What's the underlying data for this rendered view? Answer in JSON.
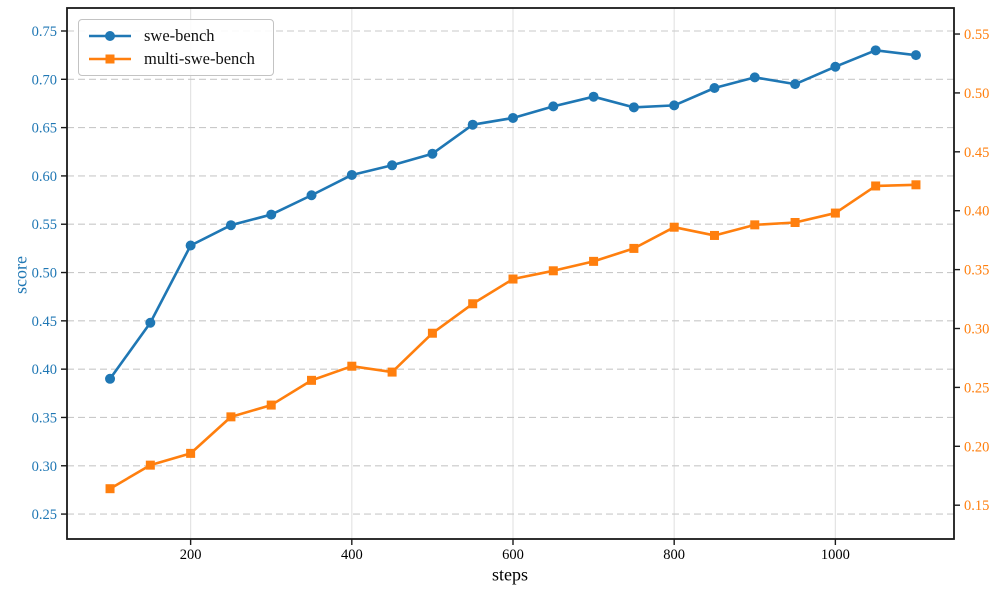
{
  "chart_data": {
    "type": "line",
    "title": "",
    "xlabel": "steps",
    "ylabel": "score",
    "grid": {
      "horizontal": "dashed",
      "vertical": "solid"
    },
    "legend_position": "upper-left",
    "x": [
      100,
      150,
      200,
      250,
      300,
      350,
      400,
      450,
      500,
      550,
      600,
      650,
      700,
      750,
      800,
      850,
      900,
      950,
      1000,
      1050,
      1100
    ],
    "x_ticks": [
      200,
      400,
      600,
      800,
      1000
    ],
    "x_range": [
      46.6,
      1147.2
    ],
    "left_axis": {
      "color": "#1f77b4",
      "ticks": [
        0.25,
        0.3,
        0.35,
        0.4,
        0.45,
        0.5,
        0.55,
        0.6,
        0.65,
        0.7,
        0.75
      ],
      "range": [
        0.2242,
        0.7738
      ]
    },
    "right_axis": {
      "color": "#ff7f0e",
      "ticks": [
        0.15,
        0.2,
        0.25,
        0.3,
        0.35,
        0.4,
        0.45,
        0.5,
        0.55
      ],
      "range": [
        0.1213,
        0.5721
      ]
    },
    "series": [
      {
        "name": "swe-bench",
        "color": "#1f77b4",
        "marker": "circle",
        "axis": "left",
        "values": [
          0.39,
          0.448,
          0.528,
          0.549,
          0.56,
          0.58,
          0.601,
          0.611,
          0.623,
          0.653,
          0.66,
          0.672,
          0.682,
          0.671,
          0.673,
          0.691,
          0.702,
          0.695,
          0.713,
          0.73,
          0.725
        ]
      },
      {
        "name": "multi-swe-bench",
        "color": "#ff7f0e",
        "marker": "square",
        "axis": "right",
        "values": [
          0.164,
          0.184,
          0.194,
          0.225,
          0.235,
          0.256,
          0.268,
          0.263,
          0.296,
          0.321,
          0.342,
          0.349,
          0.357,
          0.368,
          0.386,
          0.379,
          0.388,
          0.39,
          0.398,
          0.421,
          0.422
        ]
      }
    ],
    "style": {
      "spine_color": "#1a1a1a",
      "tick_color": "#1a1a1a",
      "h_grid_color": "#c9c9c9",
      "v_grid_color": "#e4e4e4",
      "x_tick_label_color": "#000000"
    }
  }
}
